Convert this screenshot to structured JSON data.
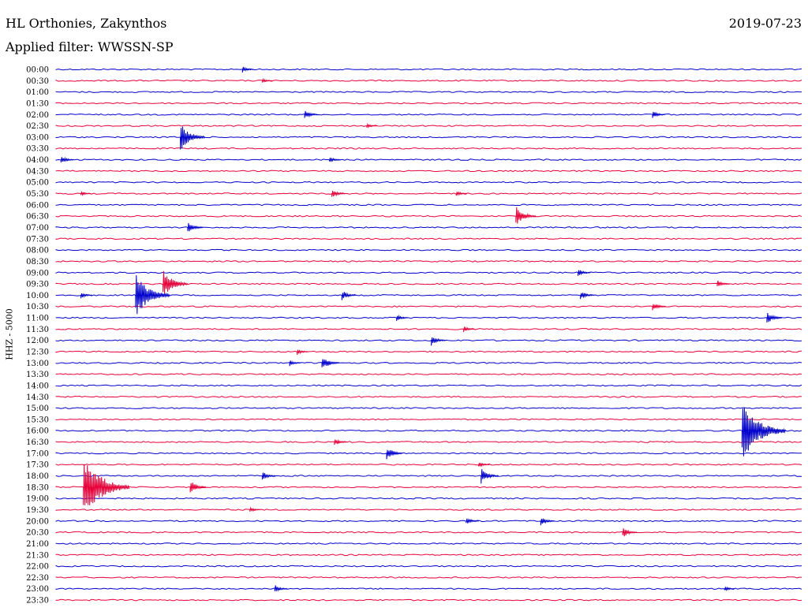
{
  "header": {
    "station": "HL Orthonies, Zakynthos",
    "date": "2019-07-23",
    "filter": "Applied filter: WWSSN-SP"
  },
  "axis": {
    "ylabel": "HHZ - 5000"
  },
  "colors": {
    "odd_trace": "#0000cc",
    "even_trace": "#e8003a"
  },
  "chart_data": {
    "type": "line",
    "title": "HL Orthonies, Zakynthos",
    "subtitle": "Applied filter: WWSSN-SP",
    "ylabel": "HHZ - 5000",
    "rows": [
      "00:00",
      "00:30",
      "01:00",
      "01:30",
      "02:00",
      "02:30",
      "03:00",
      "03:30",
      "04:00",
      "04:30",
      "05:00",
      "05:30",
      "06:00",
      "06:30",
      "07:00",
      "07:30",
      "08:00",
      "08:30",
      "09:00",
      "09:30",
      "10:00",
      "10:30",
      "11:00",
      "11:30",
      "12:00",
      "12:30",
      "13:00",
      "13:30",
      "14:00",
      "14:30",
      "15:00",
      "15:30",
      "16:00",
      "16:30",
      "17:00",
      "17:30",
      "18:00",
      "18:30",
      "19:00",
      "19:30",
      "20:00",
      "20:30",
      "21:00",
      "21:30",
      "22:00",
      "22:30",
      "23:00",
      "23:30"
    ],
    "events": [
      {
        "row": 0,
        "minute": 7.5,
        "amp": 4
      },
      {
        "row": 1,
        "minute": 8.3,
        "amp": 3
      },
      {
        "row": 4,
        "minute": 10.0,
        "amp": 6
      },
      {
        "row": 4,
        "minute": 24.0,
        "amp": 5
      },
      {
        "row": 5,
        "minute": 12.5,
        "amp": 3
      },
      {
        "row": 6,
        "minute": 5.0,
        "amp": 18
      },
      {
        "row": 8,
        "minute": 0.2,
        "amp": 5
      },
      {
        "row": 8,
        "minute": 11.0,
        "amp": 4
      },
      {
        "row": 11,
        "minute": 1.0,
        "amp": 3
      },
      {
        "row": 11,
        "minute": 11.1,
        "amp": 6
      },
      {
        "row": 11,
        "minute": 16.1,
        "amp": 4
      },
      {
        "row": 13,
        "minute": 18.5,
        "amp": 13
      },
      {
        "row": 14,
        "minute": 5.3,
        "amp": 8
      },
      {
        "row": 18,
        "minute": 21.0,
        "amp": 5
      },
      {
        "row": 19,
        "minute": 4.3,
        "amp": 18
      },
      {
        "row": 19,
        "minute": 26.6,
        "amp": 5
      },
      {
        "row": 20,
        "minute": 3.2,
        "amp": 28
      },
      {
        "row": 20,
        "minute": 11.5,
        "amp": 7
      },
      {
        "row": 20,
        "minute": 21.1,
        "amp": 6
      },
      {
        "row": 20,
        "minute": 1.0,
        "amp": 4
      },
      {
        "row": 21,
        "minute": 24.0,
        "amp": 6
      },
      {
        "row": 22,
        "minute": 28.6,
        "amp": 8
      },
      {
        "row": 22,
        "minute": 13.7,
        "amp": 4
      },
      {
        "row": 23,
        "minute": 16.4,
        "amp": 4
      },
      {
        "row": 24,
        "minute": 15.1,
        "amp": 7
      },
      {
        "row": 25,
        "minute": 9.7,
        "amp": 4
      },
      {
        "row": 26,
        "minute": 10.7,
        "amp": 10
      },
      {
        "row": 26,
        "minute": 9.4,
        "amp": 4
      },
      {
        "row": 33,
        "minute": 11.2,
        "amp": 5
      },
      {
        "row": 32,
        "minute": 27.6,
        "amp": 38
      },
      {
        "row": 34,
        "minute": 13.3,
        "amp": 9
      },
      {
        "row": 35,
        "minute": 17.0,
        "amp": 4
      },
      {
        "row": 36,
        "minute": 8.3,
        "amp": 6
      },
      {
        "row": 36,
        "minute": 17.1,
        "amp": 10
      },
      {
        "row": 37,
        "minute": 1.1,
        "amp": 40
      },
      {
        "row": 37,
        "minute": 5.4,
        "amp": 9
      },
      {
        "row": 39,
        "minute": 7.8,
        "amp": 3
      },
      {
        "row": 40,
        "minute": 16.5,
        "amp": 5
      },
      {
        "row": 40,
        "minute": 19.5,
        "amp": 6
      },
      {
        "row": 41,
        "minute": 22.8,
        "amp": 7
      },
      {
        "row": 46,
        "minute": 8.8,
        "amp": 5
      },
      {
        "row": 46,
        "minute": 26.9,
        "amp": 3
      }
    ],
    "xlim": [
      0,
      30
    ],
    "grid": false
  }
}
